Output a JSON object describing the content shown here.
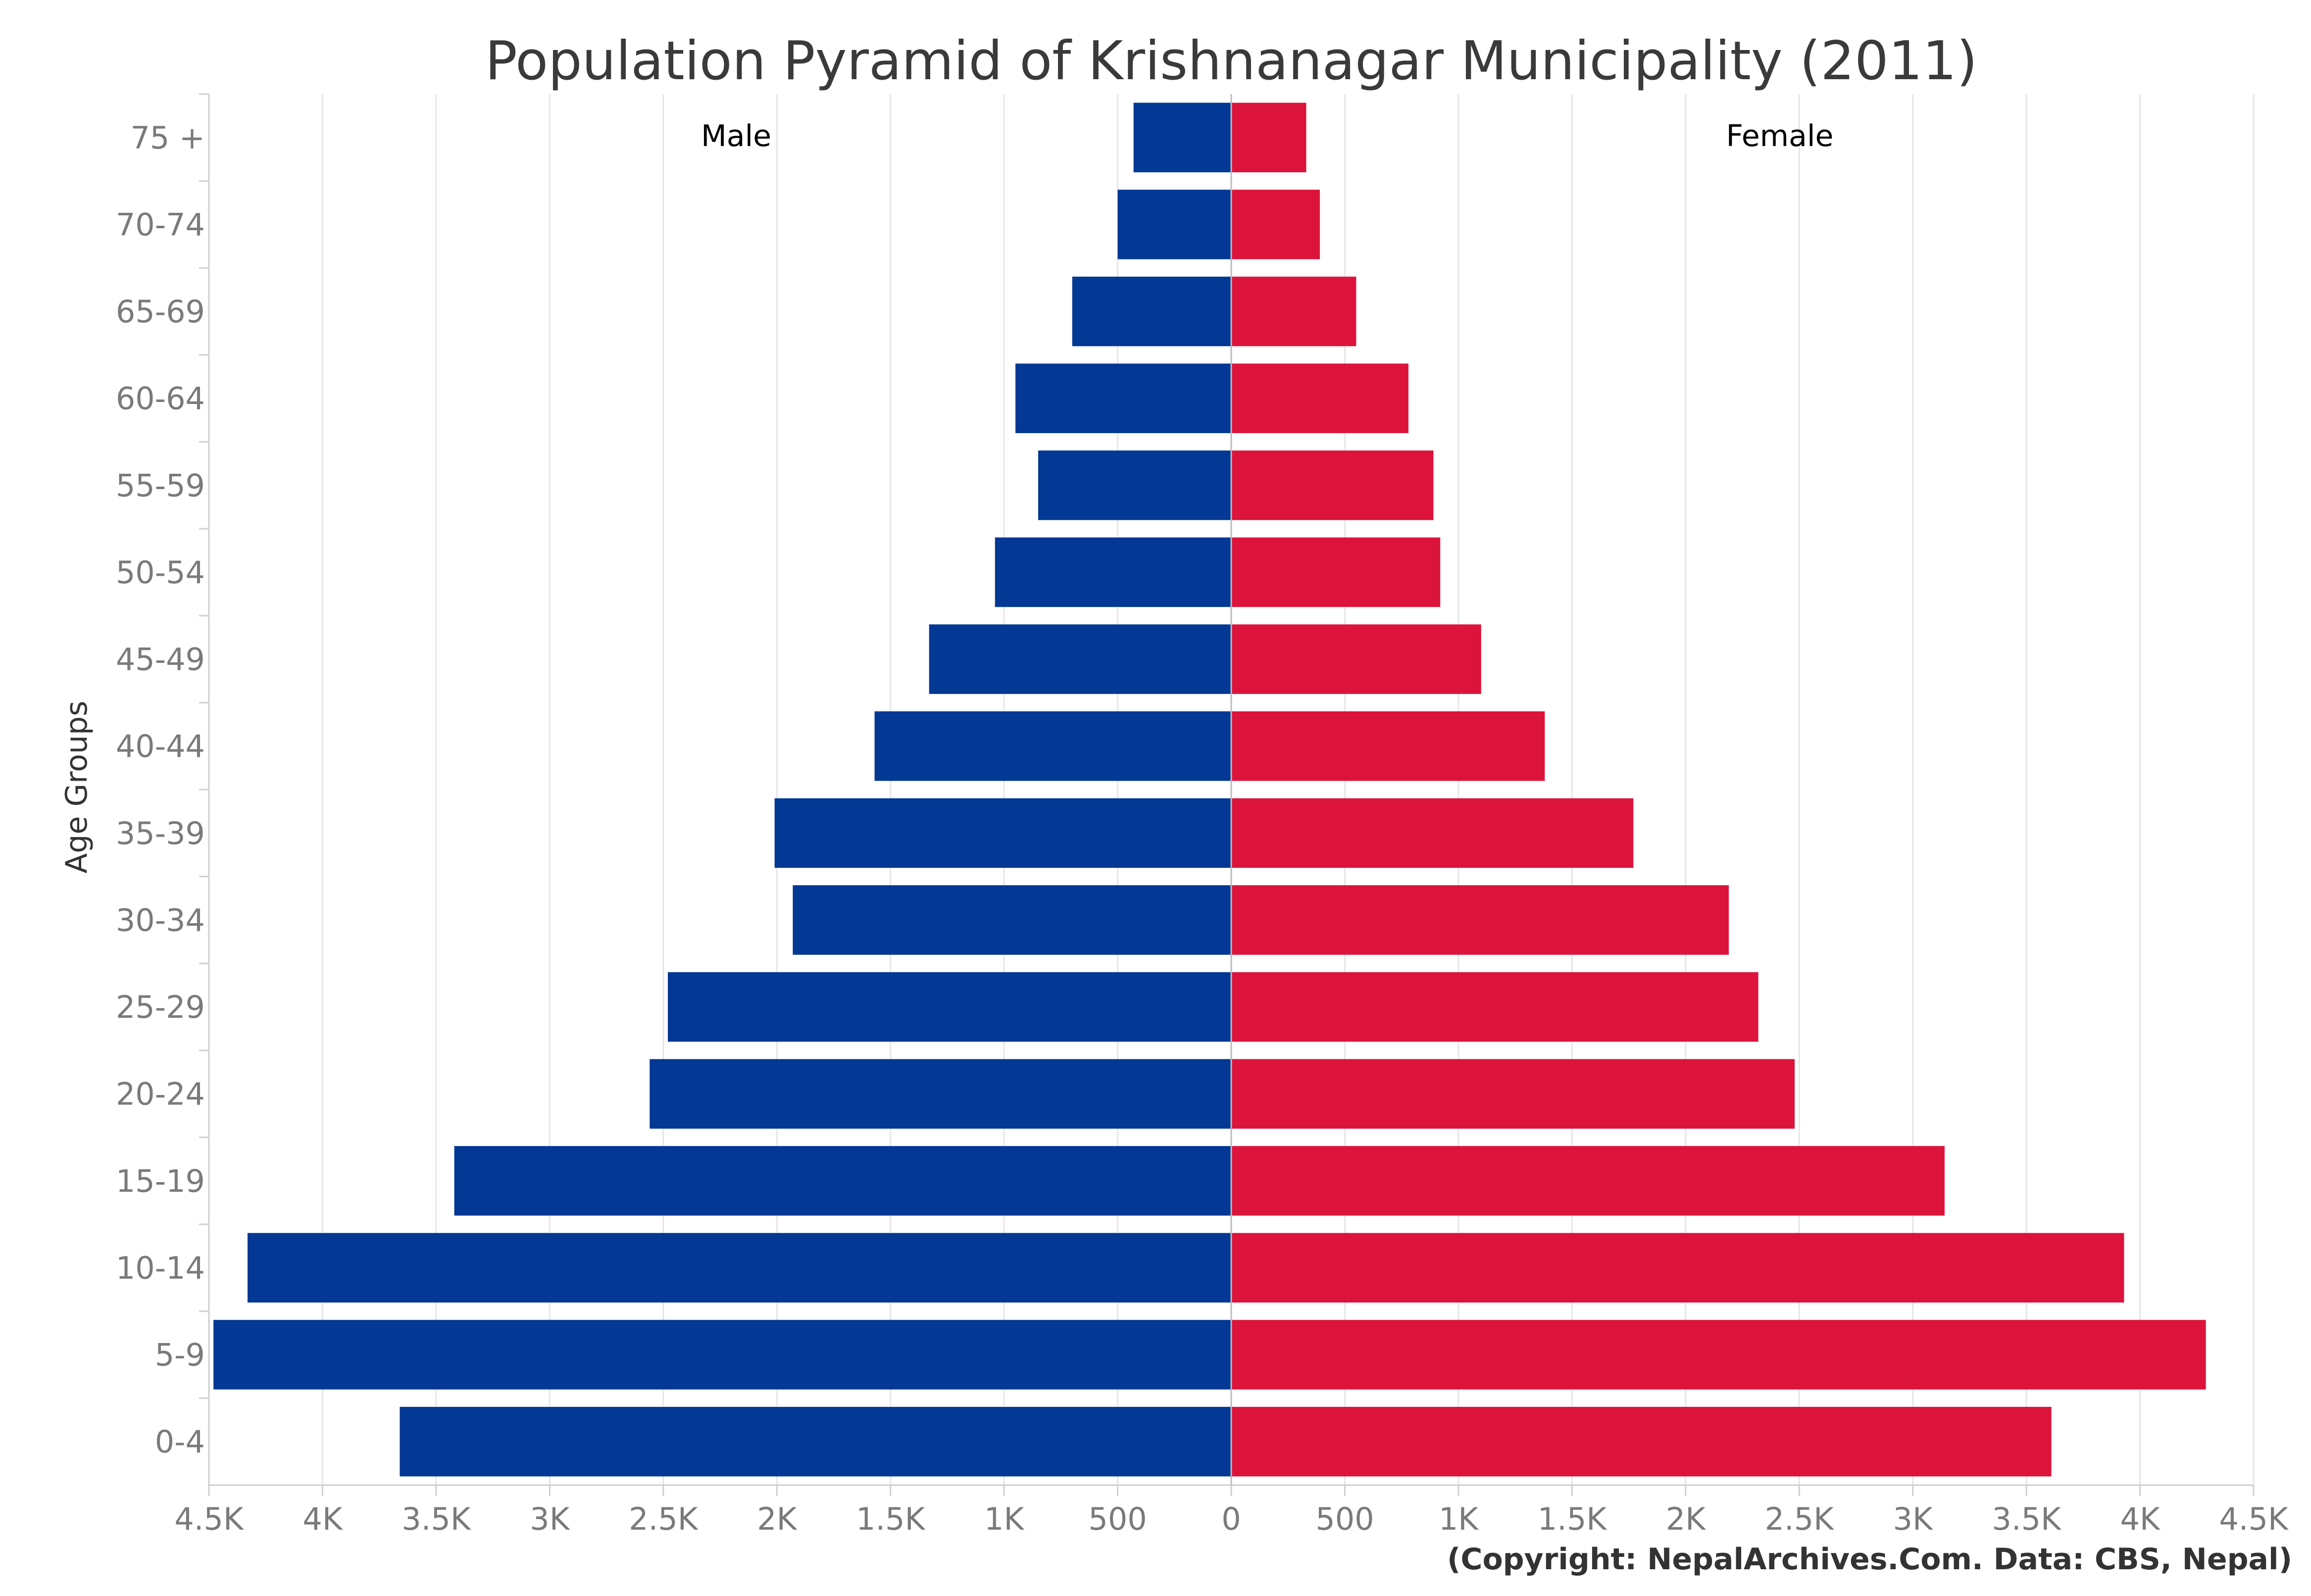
{
  "chart_data": {
    "type": "bar",
    "orientation": "horizontal",
    "title": "Population Pyramid of Krishnanagar Municipality (2011)",
    "ylabel": "Age Groups",
    "xlim": [
      -4500,
      4500
    ],
    "xtick_values": [
      -4500,
      -4000,
      -3500,
      -3000,
      -2500,
      -2000,
      -1500,
      -1000,
      -500,
      0,
      500,
      1000,
      1500,
      2000,
      2500,
      3000,
      3500,
      4000,
      4500
    ],
    "xtick_labels": [
      "4.5K",
      "4K",
      "3.5K",
      "3K",
      "2.5K",
      "2K",
      "1.5K",
      "1K",
      "500",
      "0",
      "500",
      "1K",
      "1.5K",
      "2K",
      "2.5K",
      "3K",
      "3.5K",
      "4K",
      "4.5K"
    ],
    "categories": [
      "75 +",
      "70-74",
      "65-69",
      "60-64",
      "55-59",
      "50-54",
      "45-49",
      "40-44",
      "35-39",
      "30-34",
      "25-29",
      "20-24",
      "15-19",
      "10-14",
      "5-9",
      "0-4"
    ],
    "series": [
      {
        "name": "Male",
        "color": "#033894",
        "side": "left",
        "values": [
          430,
          500,
          700,
          950,
          850,
          1040,
          1330,
          1570,
          2010,
          1930,
          2480,
          2560,
          3420,
          4330,
          4480,
          3660
        ]
      },
      {
        "name": "Female",
        "color": "#dc143c",
        "side": "right",
        "values": [
          330,
          390,
          550,
          780,
          890,
          920,
          1100,
          1380,
          1770,
          2190,
          2320,
          2480,
          3140,
          3930,
          4290,
          3610
        ]
      }
    ],
    "grid": true,
    "legend": "none"
  },
  "credit": "(Copyright: NepalArchives.Com. Data: CBS, Nepal)"
}
